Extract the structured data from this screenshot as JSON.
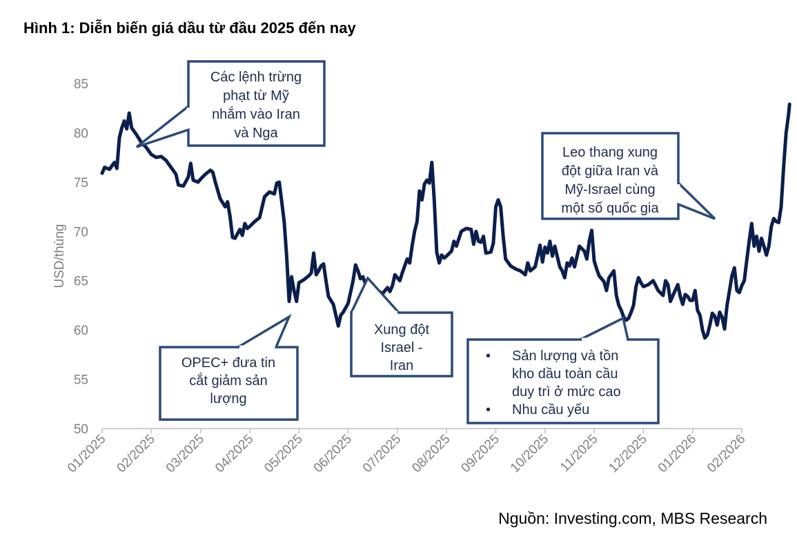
{
  "title": "Hình 1: Diễn biến giá dầu từ đầu 2025 đến nay",
  "source": "Nguồn: Investing.com, MBS Research",
  "colors": {
    "line": "#0b1f4d",
    "callout_border": "#2b4a78",
    "axis_text": "#7f7f7f"
  },
  "chart_data": {
    "type": "line",
    "ylabel": "USD/thùng",
    "ylim": [
      50,
      85
    ],
    "yticks": [
      "50",
      "55",
      "60",
      "65",
      "70",
      "75",
      "80",
      "85"
    ],
    "xticks": [
      "01/2025",
      "02/2025",
      "03/2025",
      "04/2025",
      "05/2025",
      "06/2025",
      "07/2025",
      "08/2025",
      "09/2025",
      "10/2025",
      "11/2025",
      "12/2025",
      "01/2026",
      "02/2026"
    ],
    "series": [
      {
        "name": "Giá dầu",
        "points": [
          [
            0.0,
            75.9
          ],
          [
            0.05,
            76.5
          ],
          [
            0.15,
            76.3
          ],
          [
            0.25,
            77.0
          ],
          [
            0.3,
            76.4
          ],
          [
            0.35,
            79.5
          ],
          [
            0.4,
            80.5
          ],
          [
            0.45,
            81.2
          ],
          [
            0.5,
            80.4
          ],
          [
            0.55,
            82.0
          ],
          [
            0.6,
            80.5
          ],
          [
            0.7,
            79.8
          ],
          [
            0.8,
            79.0
          ],
          [
            0.9,
            78.5
          ],
          [
            1.0,
            77.8
          ],
          [
            1.1,
            77.5
          ],
          [
            1.2,
            77.6
          ],
          [
            1.3,
            77.2
          ],
          [
            1.4,
            76.5
          ],
          [
            1.5,
            75.8
          ],
          [
            1.55,
            74.7
          ],
          [
            1.65,
            74.6
          ],
          [
            1.75,
            75.5
          ],
          [
            1.8,
            76.9
          ],
          [
            1.85,
            75.2
          ],
          [
            1.95,
            75.0
          ],
          [
            2.0,
            75.3
          ],
          [
            2.1,
            75.8
          ],
          [
            2.2,
            76.2
          ],
          [
            2.25,
            76.0
          ],
          [
            2.3,
            75.0
          ],
          [
            2.4,
            73.3
          ],
          [
            2.5,
            72.5
          ],
          [
            2.55,
            73.0
          ],
          [
            2.6,
            71.5
          ],
          [
            2.65,
            69.4
          ],
          [
            2.7,
            69.3
          ],
          [
            2.8,
            70.2
          ],
          [
            2.85,
            69.6
          ],
          [
            2.9,
            70.8
          ],
          [
            2.95,
            70.3
          ],
          [
            3.0,
            70.5
          ],
          [
            3.1,
            71.0
          ],
          [
            3.2,
            71.4
          ],
          [
            3.3,
            73.5
          ],
          [
            3.4,
            74.0
          ],
          [
            3.5,
            73.8
          ],
          [
            3.55,
            74.9
          ],
          [
            3.6,
            75.0
          ],
          [
            3.65,
            73.0
          ],
          [
            3.7,
            71.0
          ],
          [
            3.75,
            67.5
          ],
          [
            3.8,
            62.9
          ],
          [
            3.85,
            65.4
          ],
          [
            3.9,
            64.0
          ],
          [
            3.95,
            62.9
          ],
          [
            4.0,
            64.8
          ],
          [
            4.1,
            65.1
          ],
          [
            4.2,
            65.5
          ],
          [
            4.25,
            65.8
          ],
          [
            4.3,
            67.8
          ],
          [
            4.35,
            65.6
          ],
          [
            4.4,
            66.0
          ],
          [
            4.45,
            66.5
          ],
          [
            4.5,
            66.7
          ],
          [
            4.55,
            65.0
          ],
          [
            4.6,
            63.4
          ],
          [
            4.7,
            62.6
          ],
          [
            4.75,
            61.5
          ],
          [
            4.8,
            60.4
          ],
          [
            4.85,
            61.5
          ],
          [
            4.9,
            61.8
          ],
          [
            5.0,
            62.7
          ],
          [
            5.1,
            65.0
          ],
          [
            5.15,
            66.6
          ],
          [
            5.2,
            66.0
          ],
          [
            5.25,
            65.2
          ],
          [
            5.3,
            65.4
          ],
          [
            5.35,
            64.7
          ],
          [
            5.4,
            64.3
          ],
          [
            5.5,
            64.0
          ],
          [
            5.6,
            64.0
          ],
          [
            5.7,
            63.7
          ],
          [
            5.8,
            64.3
          ],
          [
            5.85,
            63.9
          ],
          [
            5.9,
            64.5
          ],
          [
            5.95,
            65.6
          ],
          [
            6.0,
            65.3
          ],
          [
            6.05,
            65.0
          ],
          [
            6.1,
            65.8
          ],
          [
            6.15,
            66.5
          ],
          [
            6.2,
            67.2
          ],
          [
            6.25,
            66.8
          ],
          [
            6.3,
            68.5
          ],
          [
            6.35,
            70.0
          ],
          [
            6.4,
            71.0
          ],
          [
            6.45,
            74.1
          ],
          [
            6.5,
            73.2
          ],
          [
            6.55,
            74.8
          ],
          [
            6.6,
            75.2
          ],
          [
            6.65,
            74.9
          ],
          [
            6.7,
            77.0
          ],
          [
            6.75,
            73.2
          ],
          [
            6.8,
            67.9
          ],
          [
            6.85,
            66.8
          ],
          [
            6.9,
            67.6
          ],
          [
            6.95,
            67.3
          ],
          [
            7.0,
            67.5
          ],
          [
            7.1,
            68.0
          ],
          [
            7.15,
            69.0
          ],
          [
            7.2,
            68.5
          ],
          [
            7.3,
            70.0
          ],
          [
            7.4,
            70.3
          ],
          [
            7.5,
            70.2
          ],
          [
            7.55,
            68.7
          ],
          [
            7.6,
            70.0
          ],
          [
            7.65,
            69.0
          ],
          [
            7.7,
            68.9
          ],
          [
            7.75,
            69.5
          ],
          [
            7.8,
            67.8
          ],
          [
            7.9,
            67.9
          ],
          [
            7.95,
            68.8
          ],
          [
            8.0,
            72.5
          ],
          [
            8.05,
            73.2
          ],
          [
            8.1,
            72.5
          ],
          [
            8.15,
            69.5
          ],
          [
            8.2,
            67.2
          ],
          [
            8.3,
            66.5
          ],
          [
            8.4,
            66.2
          ],
          [
            8.5,
            66.0
          ],
          [
            8.6,
            65.6
          ],
          [
            8.65,
            66.8
          ],
          [
            8.7,
            66.0
          ],
          [
            8.8,
            66.4
          ],
          [
            8.9,
            68.6
          ],
          [
            8.95,
            66.9
          ],
          [
            9.0,
            68.4
          ],
          [
            9.05,
            67.8
          ],
          [
            9.1,
            69.0
          ],
          [
            9.15,
            67.5
          ],
          [
            9.2,
            68.5
          ],
          [
            9.3,
            66.4
          ],
          [
            9.35,
            66.0
          ],
          [
            9.4,
            65.3
          ],
          [
            9.45,
            66.8
          ],
          [
            9.5,
            66.5
          ],
          [
            9.55,
            67.3
          ],
          [
            9.6,
            66.4
          ],
          [
            9.7,
            68.5
          ],
          [
            9.8,
            68.0
          ],
          [
            9.85,
            67.2
          ],
          [
            9.9,
            69.0
          ],
          [
            9.95,
            70.1
          ],
          [
            10.0,
            67.0
          ],
          [
            10.05,
            66.2
          ],
          [
            10.1,
            65.5
          ],
          [
            10.15,
            65.2
          ],
          [
            10.2,
            64.9
          ],
          [
            10.25,
            64.0
          ],
          [
            10.3,
            65.3
          ],
          [
            10.4,
            66.0
          ],
          [
            10.45,
            63.5
          ],
          [
            10.5,
            62.5
          ],
          [
            10.55,
            62.0
          ],
          [
            10.6,
            61.3
          ],
          [
            10.65,
            61.0
          ],
          [
            10.7,
            61.2
          ],
          [
            10.75,
            61.8
          ],
          [
            10.8,
            62.5
          ],
          [
            10.85,
            64.4
          ],
          [
            10.9,
            65.3
          ],
          [
            10.95,
            64.8
          ],
          [
            11.0,
            64.4
          ],
          [
            11.1,
            64.6
          ],
          [
            11.2,
            65.0
          ],
          [
            11.3,
            64.0
          ],
          [
            11.4,
            63.5
          ],
          [
            11.45,
            65.0
          ],
          [
            11.5,
            64.6
          ],
          [
            11.55,
            62.9
          ],
          [
            11.6,
            63.5
          ],
          [
            11.7,
            64.6
          ],
          [
            11.75,
            63.4
          ],
          [
            11.8,
            62.6
          ],
          [
            11.85,
            63.6
          ],
          [
            11.9,
            63.4
          ],
          [
            11.95,
            63.0
          ],
          [
            12.0,
            63.0
          ],
          [
            12.05,
            64.0
          ],
          [
            12.1,
            62.0
          ],
          [
            12.15,
            61.5
          ],
          [
            12.2,
            60.0
          ],
          [
            12.25,
            59.2
          ],
          [
            12.3,
            59.5
          ],
          [
            12.35,
            60.5
          ],
          [
            12.4,
            61.7
          ],
          [
            12.45,
            61.4
          ],
          [
            12.5,
            60.5
          ],
          [
            12.55,
            61.8
          ],
          [
            12.6,
            61.3
          ],
          [
            12.65,
            60.1
          ],
          [
            12.7,
            62.5
          ],
          [
            12.75,
            64.0
          ],
          [
            12.8,
            65.5
          ],
          [
            12.85,
            66.3
          ],
          [
            12.9,
            64.0
          ],
          [
            12.95,
            63.8
          ],
          [
            13.0,
            64.5
          ],
          [
            13.05,
            65.0
          ],
          [
            13.1,
            67.0
          ],
          [
            13.15,
            69.0
          ],
          [
            13.2,
            70.8
          ],
          [
            13.25,
            68.5
          ],
          [
            13.3,
            69.5
          ],
          [
            13.35,
            68.0
          ],
          [
            13.4,
            69.3
          ],
          [
            13.45,
            68.5
          ],
          [
            13.5,
            67.6
          ],
          [
            13.55,
            68.5
          ],
          [
            13.6,
            70.5
          ],
          [
            13.65,
            71.3
          ],
          [
            13.7,
            71.0
          ],
          [
            13.75,
            70.9
          ],
          [
            13.8,
            72.5
          ],
          [
            13.85,
            76.5
          ],
          [
            13.9,
            80.0
          ],
          [
            13.95,
            81.8
          ],
          [
            13.97,
            82.9
          ]
        ]
      }
    ]
  },
  "callouts": [
    {
      "id": "sanctions",
      "lines": [
        "Các lệnh trừng",
        "phạt từ Mỹ",
        "nhắm vào Iran",
        "và Nga"
      ]
    },
    {
      "id": "opec",
      "lines": [
        "OPEC+ đưa tin",
        "cắt giảm sản",
        "lượng"
      ]
    },
    {
      "id": "israel-iran",
      "lines": [
        "Xung đột",
        "Israel -",
        "Iran"
      ]
    },
    {
      "id": "supply",
      "bullet": "•",
      "lines": [
        "Sản lượng và tồn",
        "kho dầu toàn cầu",
        "duy trì ở mức cao"
      ],
      "lines2": [
        "Nhu cầu yếu"
      ]
    },
    {
      "id": "escalation",
      "lines": [
        "Leo thang xung",
        "đột giữa Iran và",
        "Mỹ-Israel cùng",
        "một số quốc gia"
      ]
    }
  ]
}
